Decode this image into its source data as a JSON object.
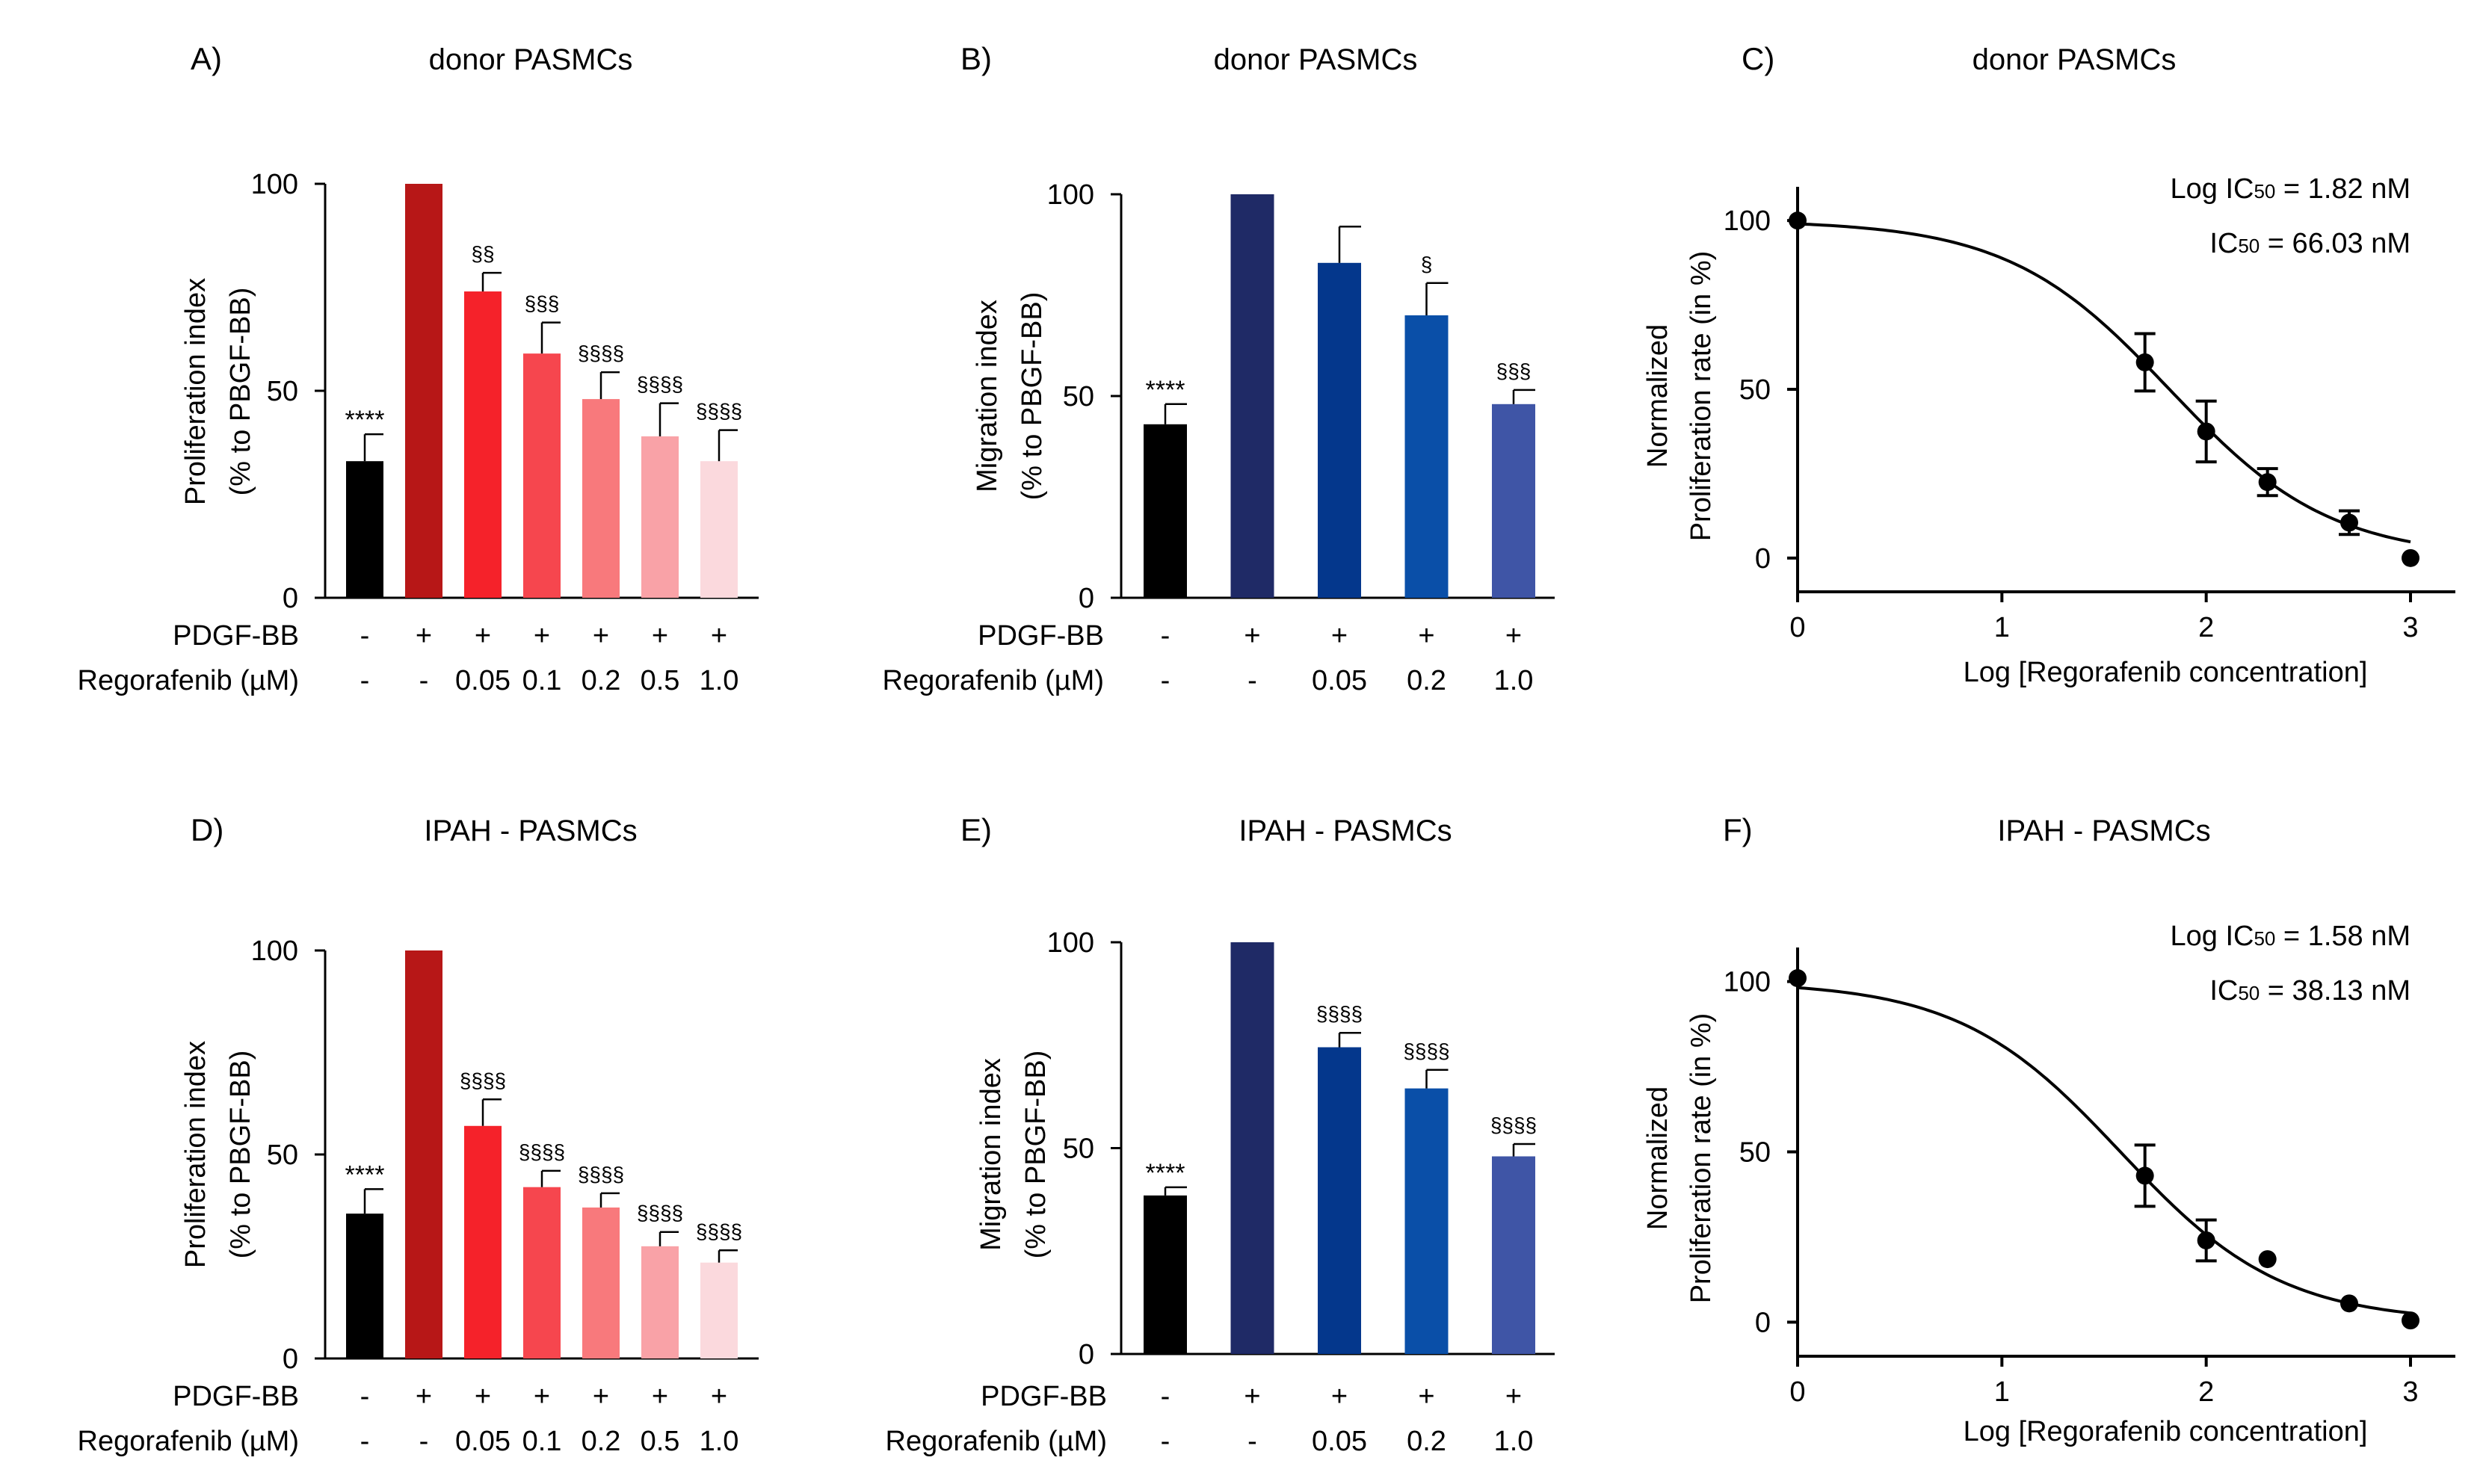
{
  "chart_data": [
    {
      "panel": "A)",
      "type": "bar",
      "title": "donor PASMCs",
      "ylabel_lines": [
        "Proliferation index",
        "(% to PBGF-BB)"
      ],
      "ylim": [
        0,
        100
      ],
      "yticks": [
        "0",
        "50",
        "100"
      ],
      "values": [
        33,
        100,
        74,
        59,
        48,
        39,
        33
      ],
      "errors": [
        6.5,
        0,
        4.5,
        7.5,
        6.5,
        8,
        7.5
      ],
      "colors": [
        "#000000",
        "#b71717",
        "#f5222a",
        "#f6464e",
        "#f8797c",
        "#f9a2a7",
        "#fbd9dd"
      ],
      "labels": [
        "****",
        "",
        "§§",
        "§§§",
        "§§§§",
        "§§§§",
        "§§§§"
      ],
      "row_labels": [
        "PDGF-BB",
        "Regorafenib (µM)"
      ],
      "pdgf": [
        "-",
        "+",
        "+",
        "+",
        "+",
        "+",
        "+"
      ],
      "rego": [
        "-",
        "-",
        "0.05",
        "0.1",
        "0.2",
        "0.5",
        "1.0"
      ]
    },
    {
      "panel": "B)",
      "type": "bar",
      "title": "donor PASMCs",
      "ylabel_lines": [
        "Migration index",
        "(% to PBGF-BB)"
      ],
      "ylim": [
        0,
        100
      ],
      "yticks": [
        "0",
        "50",
        "100"
      ],
      "values": [
        43,
        100,
        83,
        70,
        48
      ],
      "errors": [
        5,
        0,
        9,
        8,
        3.5
      ],
      "colors": [
        "#000000",
        "#1f2a66",
        "#04378c",
        "#0a4fa8",
        "#3f55a6"
      ],
      "labels": [
        "****",
        "",
        "",
        "§",
        "§§§"
      ],
      "row_labels": [
        "PDGF-BB",
        "Regorafenib (µM)"
      ],
      "pdgf": [
        "-",
        "+",
        "+",
        "+",
        "+"
      ],
      "rego": [
        "-",
        "-",
        "0.05",
        "0.2",
        "1.0"
      ]
    },
    {
      "panel": "C)",
      "type": "line",
      "title": "donor PASMCs",
      "ylabel_lines": [
        "Normalized",
        "Proliferation rate (in %)"
      ],
      "xlabel": "Log [Regorafenib concentration]",
      "xlim": [
        0,
        3
      ],
      "ylim": [
        -10,
        110
      ],
      "xticks": [
        "0",
        "1",
        "2",
        "3"
      ],
      "yticks": [
        "0",
        "50",
        "100"
      ],
      "x": [
        0,
        1.7,
        2.0,
        2.3,
        2.7,
        3.0
      ],
      "y": [
        100,
        58,
        37.5,
        22.5,
        10.5,
        0
      ],
      "err": [
        0,
        8.5,
        9,
        4,
        3.5,
        0
      ],
      "curve": {
        "top": 100,
        "bottom": 0,
        "logIC50": 1.82,
        "hill": 1.1
      },
      "annotation_line1": {
        "pre": "Log IC",
        "sub": "50",
        "post": " = 1.82 nM"
      },
      "annotation_line2": {
        "pre": "IC",
        "sub": "50",
        "post": " = 66.03 nM"
      }
    },
    {
      "panel": "D)",
      "type": "bar",
      "title": "IPAH - PASMCs",
      "ylabel_lines": [
        "Proliferation index",
        "(% to PBGF-BB)"
      ],
      "ylim": [
        0,
        100
      ],
      "yticks": [
        "0",
        "50",
        "100"
      ],
      "values": [
        35.5,
        100,
        57,
        42,
        37,
        27.5,
        23.5
      ],
      "errors": [
        6,
        0,
        6.5,
        4,
        3.5,
        3.5,
        3
      ],
      "colors": [
        "#000000",
        "#b71717",
        "#f5222a",
        "#f6464e",
        "#f8797c",
        "#f9a2a7",
        "#fbd9dd"
      ],
      "labels": [
        "****",
        "",
        "§§§§",
        "§§§§",
        "§§§§",
        "§§§§",
        "§§§§"
      ],
      "row_labels": [
        "PDGF-BB",
        "Regorafenib (µM)"
      ],
      "pdgf": [
        "-",
        "+",
        "+",
        "+",
        "+",
        "+",
        "+"
      ],
      "rego": [
        "-",
        "-",
        "0.05",
        "0.1",
        "0.2",
        "0.5",
        "1.0"
      ]
    },
    {
      "panel": "E)",
      "type": "bar",
      "title": "IPAH - PASMCs",
      "ylabel_lines": [
        "Migration index",
        "(% to PBGF-BB)"
      ],
      "ylim": [
        0,
        100
      ],
      "yticks": [
        "0",
        "50",
        "100"
      ],
      "values": [
        38.5,
        100,
        74.5,
        64.5,
        48
      ],
      "errors": [
        2,
        0,
        3.5,
        4.5,
        3
      ],
      "colors": [
        "#000000",
        "#1f2a66",
        "#04378c",
        "#0a4fa8",
        "#3f55a6"
      ],
      "labels": [
        "****",
        "",
        "§§§§",
        "§§§§",
        "§§§§"
      ],
      "row_labels": [
        "PDGF-BB",
        "Regorafenib (µM)"
      ],
      "pdgf": [
        "-",
        "+",
        "+",
        "+",
        "+"
      ],
      "rego": [
        "-",
        "-",
        "0.05",
        "0.2",
        "1.0"
      ]
    },
    {
      "panel": "F)",
      "type": "line",
      "title": "IPAH - PASMCs",
      "ylabel_lines": [
        "Normalized",
        "Proliferation rate (in %)"
      ],
      "xlabel": "Log [Regorafenib concentration]",
      "xlim": [
        0,
        3
      ],
      "ylim": [
        -10,
        110
      ],
      "xticks": [
        "0",
        "1",
        "2",
        "3"
      ],
      "yticks": [
        "0",
        "50",
        "100"
      ],
      "x": [
        0,
        1.7,
        2.0,
        2.3,
        2.7,
        3.0
      ],
      "y": [
        101,
        43,
        24,
        18.5,
        5.5,
        0.5
      ],
      "err": [
        0,
        9,
        6,
        0,
        0,
        0
      ],
      "curve": {
        "top": 100,
        "bottom": 0,
        "logIC50": 1.58,
        "hill": 1.1
      },
      "annotation_line1": {
        "pre": "Log IC",
        "sub": "50",
        "post": " = 1.58 nM"
      },
      "annotation_line2": {
        "pre": "IC",
        "sub": "50",
        "post": " = 38.13 nM"
      }
    }
  ]
}
